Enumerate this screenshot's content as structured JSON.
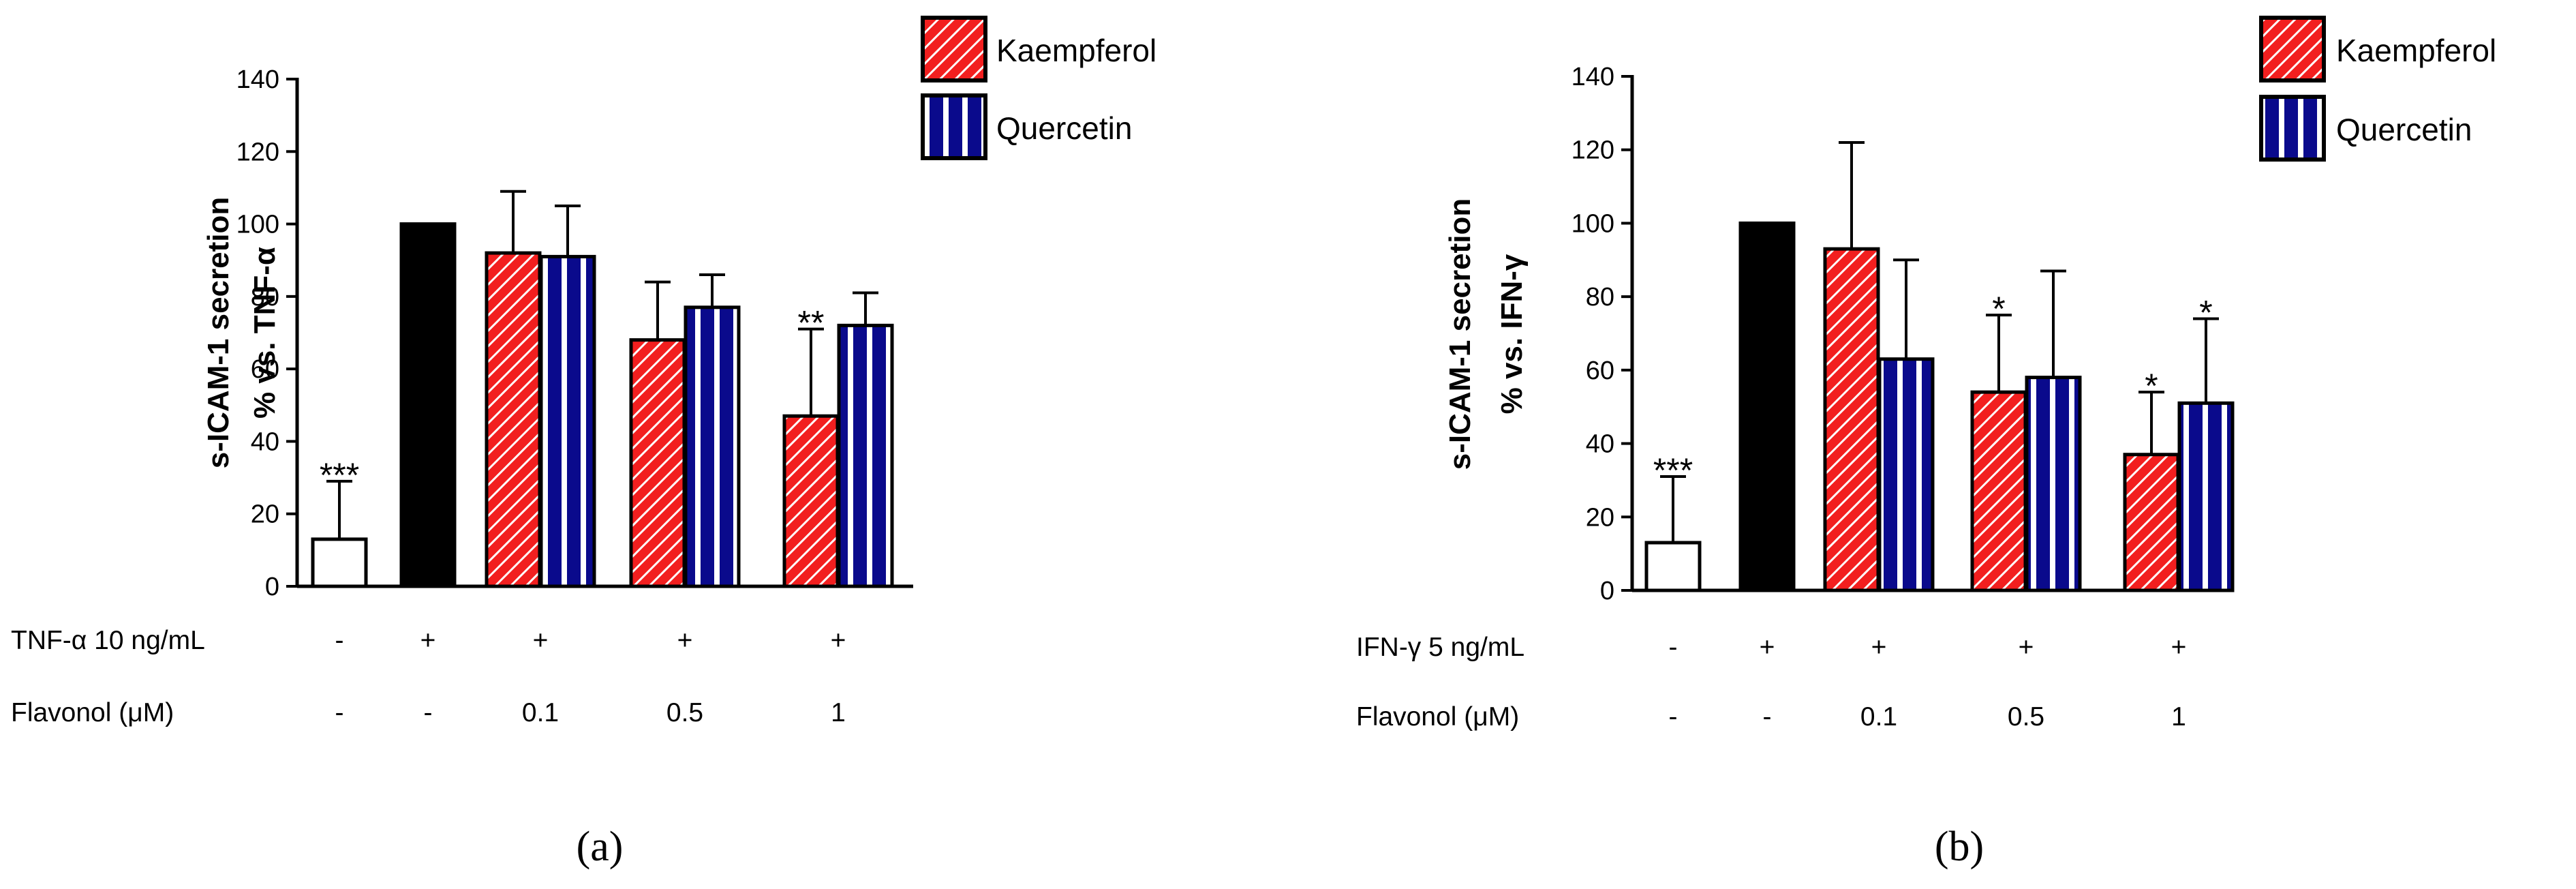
{
  "colors": {
    "kaempferol_fill": "#f21f1f",
    "kaempferol_hatch": "#ffffff",
    "quercetin_fill": "#0a0a8c",
    "quercetin_stripe": "#ffffff",
    "control_fill": "#ffffff",
    "stimulus_fill": "#000000",
    "axis": "#000000"
  },
  "chart_data": [
    {
      "panel_label": "(a)",
      "type": "bar",
      "ylabel_line1": "s-ICAM-1 secretion",
      "ylabel_line2": "% vs. TNF-α",
      "ylim": [
        0,
        140
      ],
      "yticks": [
        "0",
        "20",
        "40",
        "60",
        "80",
        "100",
        "120",
        "140"
      ],
      "legend": {
        "placement": "top-right",
        "items": [
          {
            "series": "kaempferol",
            "label": "Kaempferol"
          },
          {
            "series": "quercetin",
            "label": "Quercetin"
          }
        ]
      },
      "condition_rows": [
        {
          "label": "TNF-α 10 ng/mL",
          "values": [
            "-",
            "+",
            "+",
            "+",
            "+"
          ]
        },
        {
          "label": "Flavonol (μM)",
          "values": [
            "-",
            "-",
            "0.1",
            "0.5",
            "1"
          ]
        }
      ],
      "groups": [
        {
          "bars": [
            {
              "series": "control",
              "value": 13,
              "error": 16,
              "sig": "***"
            }
          ]
        },
        {
          "bars": [
            {
              "series": "stimulus",
              "value": 100,
              "error": 0,
              "sig": ""
            }
          ]
        },
        {
          "bars": [
            {
              "series": "kaempferol",
              "value": 92,
              "error": 17,
              "sig": ""
            },
            {
              "series": "quercetin",
              "value": 91,
              "error": 14,
              "sig": ""
            }
          ]
        },
        {
          "bars": [
            {
              "series": "kaempferol",
              "value": 68,
              "error": 16,
              "sig": ""
            },
            {
              "series": "quercetin",
              "value": 77,
              "error": 9,
              "sig": ""
            }
          ]
        },
        {
          "bars": [
            {
              "series": "kaempferol",
              "value": 47,
              "error": 24,
              "sig": "**"
            },
            {
              "series": "quercetin",
              "value": 72,
              "error": 9,
              "sig": ""
            }
          ]
        }
      ]
    },
    {
      "panel_label": "(b)",
      "type": "bar",
      "ylabel_line1": "s-ICAM-1 secretion",
      "ylabel_line2": "% vs.  IFN-γ",
      "ylim": [
        0,
        140
      ],
      "yticks": [
        "0",
        "20",
        "40",
        "60",
        "80",
        "100",
        "120",
        "140"
      ],
      "legend": {
        "placement": "top-right",
        "items": [
          {
            "series": "kaempferol",
            "label": "Kaempferol"
          },
          {
            "series": "quercetin",
            "label": "Quercetin"
          }
        ]
      },
      "condition_rows": [
        {
          "label": "IFN-γ 5 ng/mL",
          "values": [
            "-",
            "+",
            "+",
            "+",
            "+"
          ]
        },
        {
          "label": "Flavonol (μM)",
          "values": [
            "-",
            "-",
            "0.1",
            "0.5",
            "1"
          ]
        }
      ],
      "groups": [
        {
          "bars": [
            {
              "series": "control",
              "value": 13,
              "error": 18,
              "sig": "***"
            }
          ]
        },
        {
          "bars": [
            {
              "series": "stimulus",
              "value": 100,
              "error": 0,
              "sig": ""
            }
          ]
        },
        {
          "bars": [
            {
              "series": "kaempferol",
              "value": 93,
              "error": 29,
              "sig": ""
            },
            {
              "series": "quercetin",
              "value": 63,
              "error": 27,
              "sig": ""
            }
          ]
        },
        {
          "bars": [
            {
              "series": "kaempferol",
              "value": 54,
              "error": 21,
              "sig": "*"
            },
            {
              "series": "quercetin",
              "value": 58,
              "error": 29,
              "sig": ""
            }
          ]
        },
        {
          "bars": [
            {
              "series": "kaempferol",
              "value": 37,
              "error": 17,
              "sig": "*"
            },
            {
              "series": "quercetin",
              "value": 51,
              "error": 23,
              "sig": "*"
            }
          ]
        }
      ]
    }
  ]
}
